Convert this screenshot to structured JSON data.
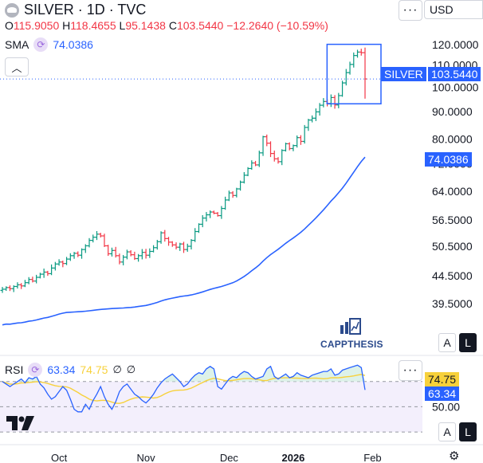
{
  "header": {
    "title": "SILVER · 1D · TVC",
    "currency": "USD",
    "ohlc": {
      "o_label": "O",
      "o": "115.9050",
      "h_label": "H",
      "h": "118.4655",
      "l_label": "L",
      "l": "95.1438",
      "c_label": "C",
      "c": "103.5440",
      "change": "−12.2640 (−10.59%)"
    },
    "collapse_icon": "chevron-up-icon",
    "more_icon": "more-dots-icon"
  },
  "indicators": {
    "sma": {
      "label": "SMA",
      "value": "74.0386",
      "color": "#2962ff"
    },
    "rsi": {
      "label": "RSI",
      "value": "63.34",
      "sma_value": "74.75",
      "hidden_1": "∅",
      "hidden_2": "∅",
      "color": "#2962ff",
      "sma_color": "#f7d13b"
    }
  },
  "price_tags": {
    "symbol": "SILVER",
    "last": "103.5440",
    "sma": "74.0386",
    "rsi_sma": "74.75",
    "rsi": "63.34",
    "up_color": "#089981",
    "down_color": "#f23645"
  },
  "buttons": {
    "auto_label": "A",
    "log_label": "L",
    "rsi_auto_label": "A",
    "rsi_log_label": "L"
  },
  "watermark": {
    "text": "CAPPTHESIS"
  },
  "settings_icon": "gear-icon",
  "chart_data": [
    {
      "type": "ohlc",
      "title": "SILVER · 1D · TVC",
      "y_scale": "log",
      "ylim": [
        37,
        125
      ],
      "y_ticks": [
        "120.0000",
        "110.0000",
        "100.0000",
        "90.0000",
        "80.0000",
        "72.0000",
        "64.0000",
        "56.5000",
        "50.5000",
        "44.5000",
        "39.5000"
      ],
      "y_tick_values": [
        120,
        110,
        100,
        90,
        80,
        72,
        64,
        56.5,
        50.5,
        44.5,
        39.5
      ],
      "x_ticks": [
        "Oct",
        "Nov",
        "Dec",
        "2026",
        "Feb"
      ],
      "x_tick_index": [
        15,
        38,
        60,
        77,
        98
      ],
      "series": [
        {
          "name": "SILVER",
          "kind": "price",
          "close": [
            42.0,
            42.3,
            42.1,
            42.5,
            42.8,
            42.6,
            43.2,
            43.8,
            43.5,
            44.2,
            44.8,
            45.2,
            44.9,
            46.0,
            46.8,
            47.2,
            46.9,
            47.8,
            48.5,
            49.0,
            48.6,
            49.8,
            50.6,
            51.8,
            52.5,
            53.2,
            52.8,
            50.6,
            48.9,
            49.6,
            48.5,
            47.2,
            48.2,
            49.3,
            48.7,
            47.9,
            48.5,
            49.2,
            48.6,
            49.4,
            50.2,
            51.5,
            53.5,
            52.2,
            51.4,
            50.8,
            50.3,
            51.0,
            49.8,
            50.5,
            51.8,
            53.8,
            55.5,
            57.0,
            57.8,
            58.5,
            58.2,
            57.6,
            59.4,
            61.6,
            63.5,
            62.8,
            64.6,
            66.5,
            68.5,
            70.5,
            72.2,
            71.6,
            75.4,
            80.8,
            78.6,
            75.2,
            73.5,
            72.6,
            76.2,
            78.4,
            76.8,
            77.8,
            80.5,
            79.2,
            84.1,
            86.8,
            87.5,
            89.9,
            92.5,
            94.0,
            93.2,
            95.6,
            92.6,
            96.4,
            101.8,
            106.4,
            110.2,
            114.5,
            116.2,
            115.9,
            103.544
          ]
        },
        {
          "name": "SMA",
          "kind": "sma",
          "value": 74.0386
        }
      ]
    },
    {
      "type": "line",
      "title": "RSI",
      "ylim": [
        25,
        85
      ],
      "y_ticks": [
        "50.00"
      ],
      "levels": [
        70,
        50,
        30
      ],
      "series": [
        {
          "name": "RSI",
          "values": [
            70,
            68,
            66,
            68,
            70,
            72,
            69,
            73,
            72,
            74,
            68,
            65,
            60,
            56,
            58,
            62,
            66,
            63,
            56,
            48,
            46,
            46,
            52,
            48,
            55,
            60,
            66,
            58,
            52,
            48,
            54,
            62,
            66,
            68,
            64,
            60,
            58,
            55,
            53,
            56,
            60,
            65,
            69,
            72,
            74,
            76,
            73,
            70,
            66,
            68,
            72,
            75,
            77,
            76,
            80,
            82,
            80,
            66,
            64,
            68,
            72,
            74,
            73,
            76,
            78,
            77,
            74,
            72,
            73,
            74,
            80,
            82,
            74,
            72,
            74,
            76,
            73,
            74,
            77,
            75,
            74,
            73,
            75,
            76,
            77,
            78,
            78,
            80,
            75,
            76,
            79,
            80,
            81,
            82,
            83,
            81,
            63.34
          ]
        },
        {
          "name": "RSI SMA",
          "value": 74.75
        }
      ]
    }
  ]
}
